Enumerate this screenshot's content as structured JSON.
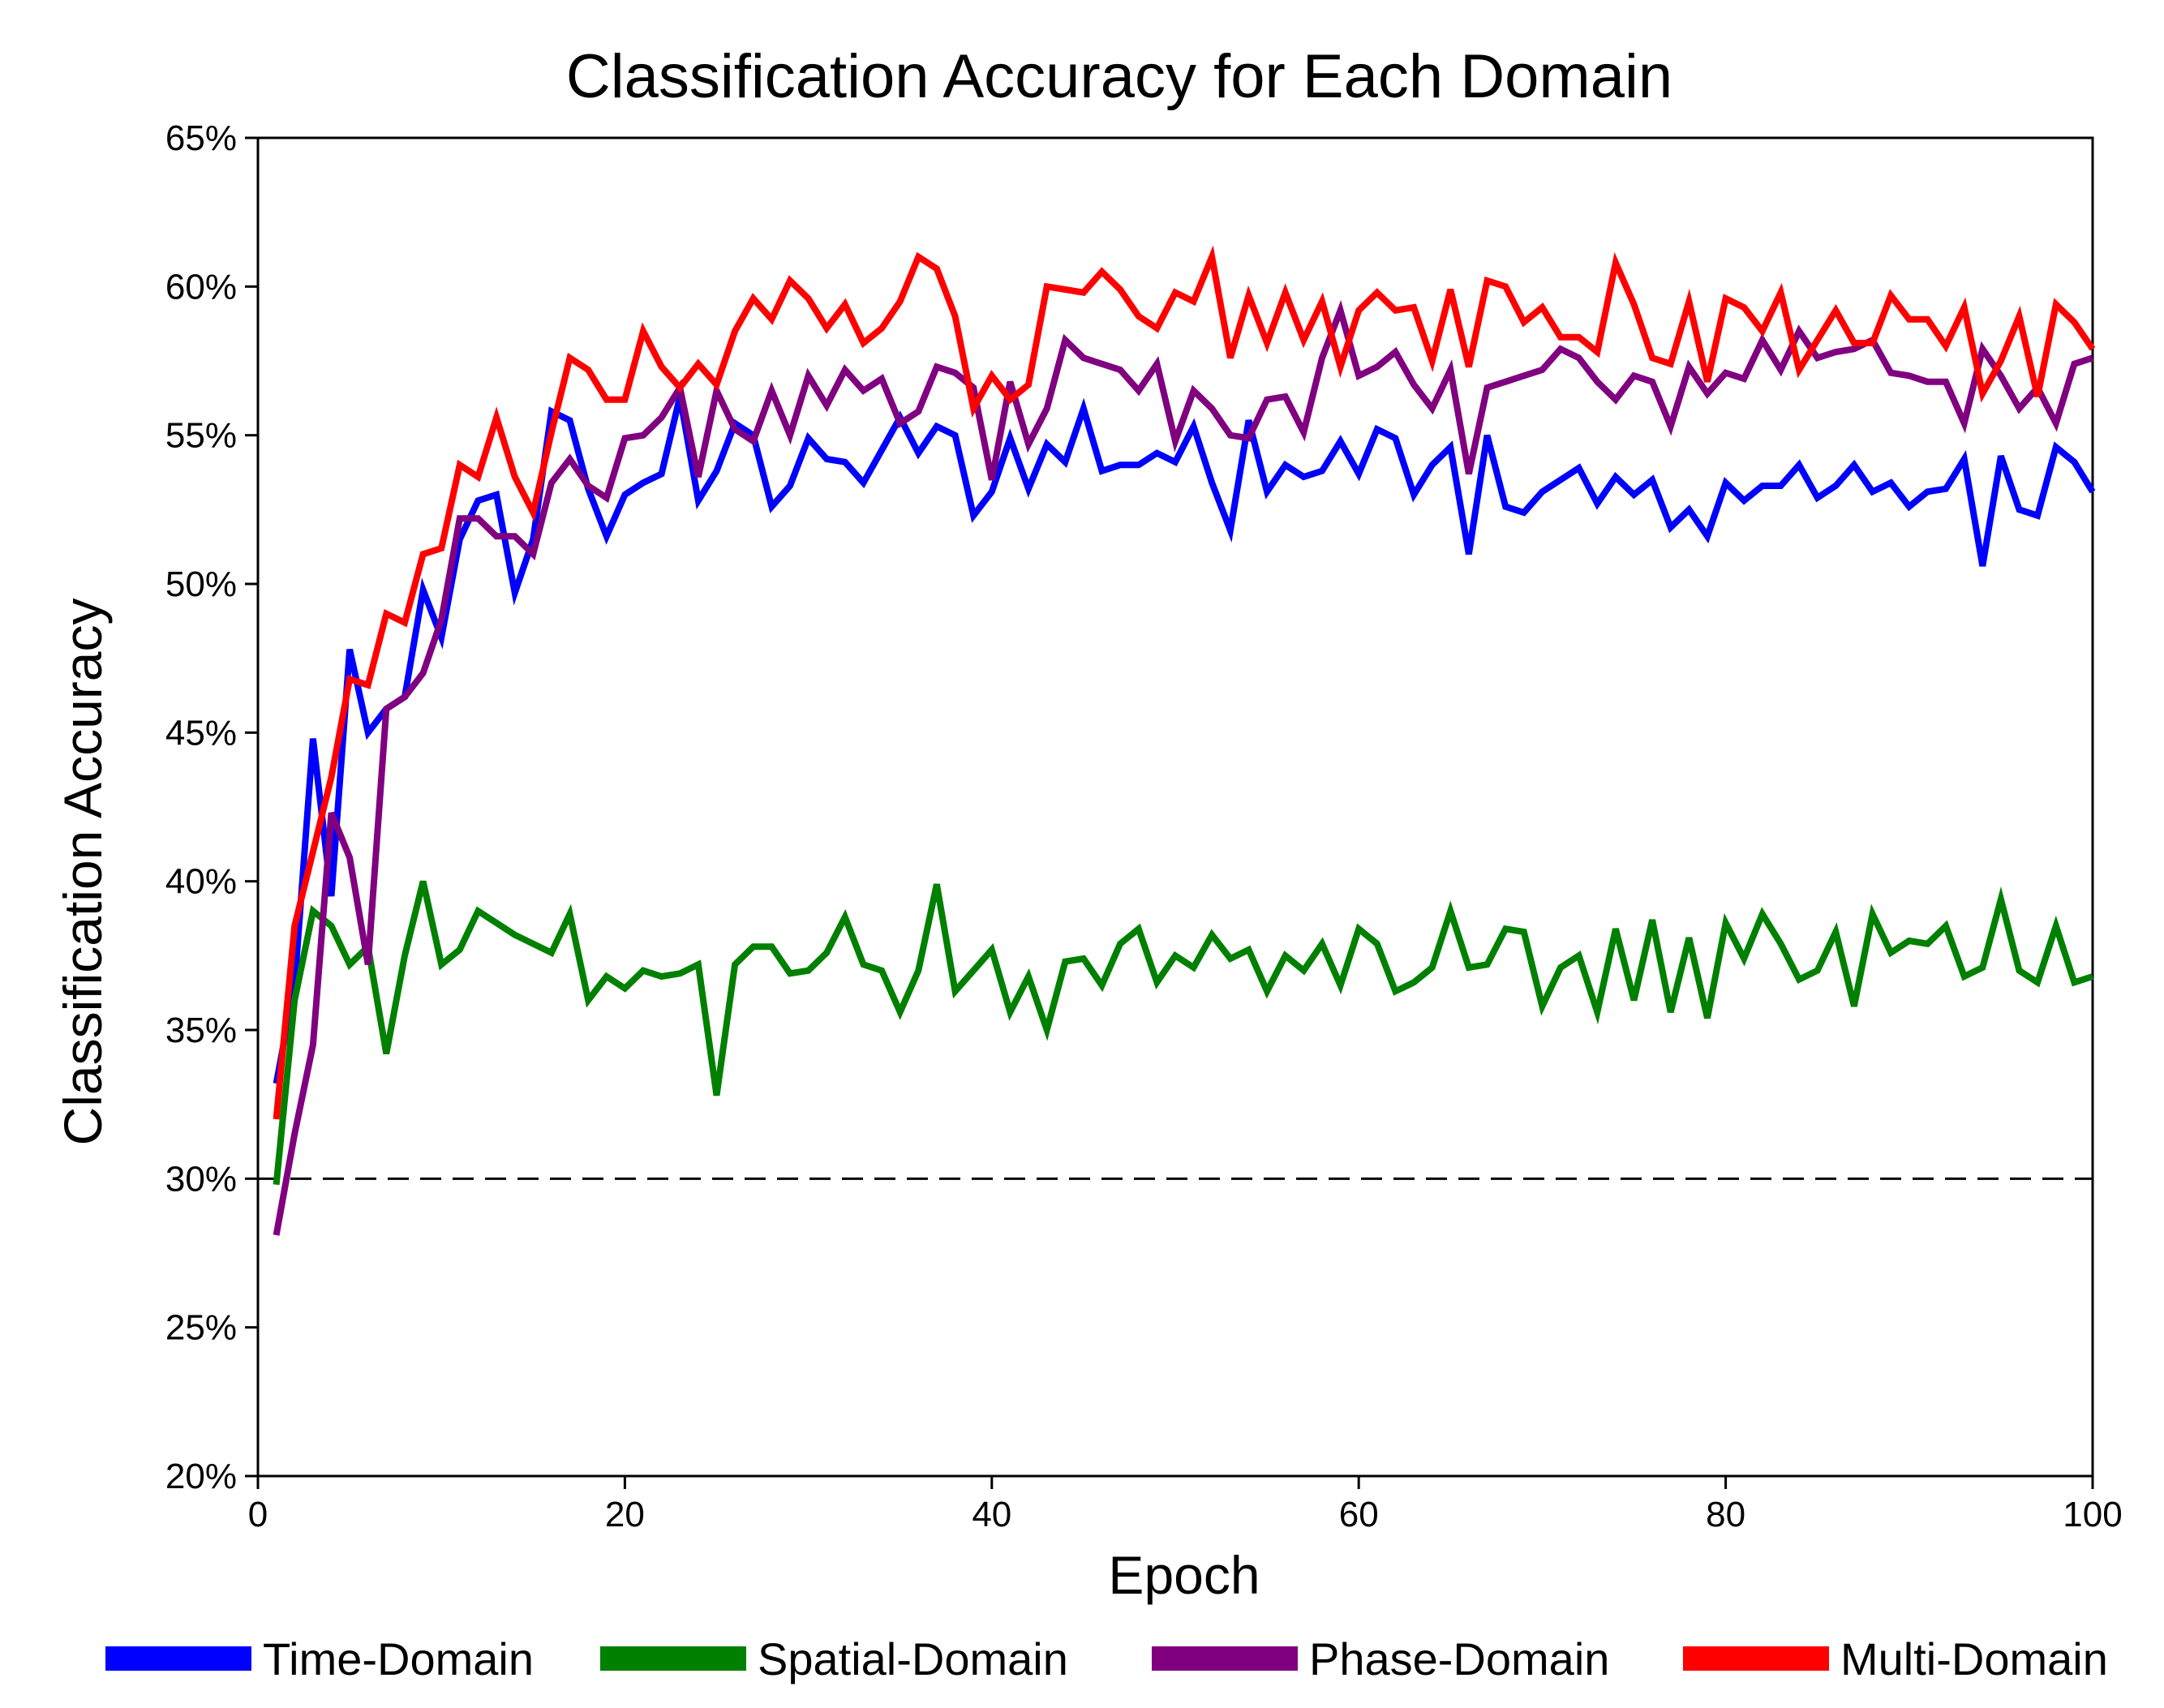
{
  "chart_data": {
    "type": "line",
    "title": "Classification Accuracy for Each Domain",
    "xlabel": "Epoch",
    "ylabel": "Classification Accuracy",
    "xlim": [
      0,
      100
    ],
    "ylim": [
      20,
      65
    ],
    "xticks": [
      0,
      20,
      40,
      60,
      80,
      100
    ],
    "xtick_labels": [
      "0",
      "20",
      "40",
      "60",
      "80",
      "100"
    ],
    "yticks": [
      20,
      25,
      30,
      35,
      40,
      45,
      50,
      55,
      60,
      65
    ],
    "ytick_labels": [
      "20%",
      "25%",
      "30%",
      "35%",
      "40%",
      "45%",
      "50%",
      "55%",
      "60%",
      "65%"
    ],
    "grid": false,
    "legend_position": "bottom",
    "reference_line": {
      "y": 30,
      "style": "dashed",
      "color": "#000000"
    },
    "x": [
      1,
      2,
      3,
      4,
      5,
      6,
      7,
      8,
      9,
      10,
      11,
      12,
      13,
      14,
      15,
      16,
      17,
      18,
      19,
      20,
      21,
      22,
      23,
      24,
      25,
      26,
      27,
      28,
      29,
      30,
      31,
      32,
      33,
      34,
      35,
      36,
      37,
      38,
      39,
      40,
      41,
      42,
      43,
      44,
      45,
      46,
      47,
      48,
      49,
      50,
      51,
      52,
      53,
      54,
      55,
      56,
      57,
      58,
      59,
      60,
      61,
      62,
      63,
      64,
      65,
      66,
      67,
      68,
      69,
      70,
      71,
      72,
      73,
      74,
      75,
      76,
      77,
      78,
      79,
      80,
      81,
      82,
      83,
      84,
      85,
      86,
      87,
      88,
      89,
      90,
      91,
      92,
      93,
      94,
      95,
      96,
      97,
      98,
      99,
      100
    ],
    "series": [
      {
        "name": "Time-Domain",
        "color": "#0000ff",
        "values": [
          33.2,
          36.5,
          44.8,
          39.5,
          47.8,
          45.0,
          45.8,
          46.2,
          49.8,
          48.2,
          51.5,
          52.8,
          53.0,
          49.7,
          51.5,
          55.8,
          55.5,
          53.2,
          51.6,
          53.0,
          53.4,
          53.7,
          56.3,
          52.8,
          53.8,
          55.4,
          55.0,
          52.6,
          53.3,
          54.9,
          54.2,
          54.1,
          53.4,
          54.5,
          55.6,
          54.4,
          55.3,
          55.0,
          52.3,
          53.1,
          54.9,
          53.2,
          54.7,
          54.1,
          55.9,
          53.8,
          54.0,
          54.0,
          54.4,
          54.1,
          55.3,
          53.4,
          51.8,
          55.5,
          53.1,
          54.0,
          53.6,
          53.8,
          54.8,
          53.7,
          55.2,
          54.9,
          53.0,
          54.0,
          54.6,
          51.0,
          55.0,
          52.6,
          52.4,
          53.1,
          53.5,
          53.9,
          52.7,
          53.6,
          53.0,
          53.5,
          51.9,
          52.5,
          51.6,
          53.4,
          52.8,
          53.3,
          53.3,
          54.0,
          52.9,
          53.3,
          54.0,
          53.1,
          53.4,
          52.6,
          53.1,
          53.2,
          54.2,
          50.6,
          54.3,
          52.5,
          52.3,
          54.6,
          54.1,
          53.1
        ]
      },
      {
        "name": "Spatial-Domain",
        "color": "#008000",
        "values": [
          29.8,
          36.0,
          39.0,
          38.5,
          37.2,
          37.8,
          34.2,
          37.5,
          40.0,
          37.2,
          37.7,
          39.0,
          38.6,
          38.2,
          37.9,
          37.6,
          38.9,
          36.0,
          36.8,
          36.4,
          37.0,
          36.8,
          36.9,
          37.2,
          32.8,
          37.2,
          37.8,
          37.8,
          36.9,
          37.0,
          37.6,
          38.8,
          37.2,
          37.0,
          35.6,
          37.0,
          39.9,
          36.3,
          37.0,
          37.7,
          35.6,
          36.8,
          35.0,
          37.3,
          37.4,
          36.5,
          37.9,
          38.4,
          36.6,
          37.5,
          37.1,
          38.2,
          37.4,
          37.7,
          36.3,
          37.5,
          37.0,
          37.9,
          36.5,
          38.4,
          37.9,
          36.3,
          36.6,
          37.1,
          39.0,
          37.1,
          37.2,
          38.4,
          38.3,
          35.8,
          37.1,
          37.5,
          35.6,
          38.4,
          36.0,
          38.7,
          35.6,
          38.1,
          35.4,
          38.6,
          37.4,
          38.9,
          37.9,
          36.7,
          37.0,
          38.3,
          35.8,
          38.9,
          37.6,
          38.0,
          37.9,
          38.5,
          36.8,
          37.1,
          39.4,
          37.0,
          36.6,
          38.5,
          36.6,
          36.8
        ]
      },
      {
        "name": "Phase-Domain",
        "color": "#800080",
        "values": [
          28.1,
          31.5,
          34.5,
          42.3,
          40.8,
          37.2,
          45.8,
          46.2,
          47.0,
          48.8,
          52.2,
          52.2,
          51.6,
          51.6,
          51.0,
          53.4,
          54.2,
          53.3,
          52.9,
          54.9,
          55.0,
          55.6,
          56.6,
          53.6,
          56.5,
          55.2,
          54.8,
          56.5,
          55.0,
          57.0,
          56.0,
          57.2,
          56.5,
          56.9,
          55.4,
          55.8,
          57.3,
          57.1,
          56.6,
          53.5,
          56.8,
          54.7,
          55.9,
          58.2,
          57.6,
          57.4,
          57.2,
          56.5,
          57.4,
          54.8,
          56.5,
          55.9,
          55.0,
          54.9,
          56.2,
          56.3,
          55.1,
          57.6,
          59.2,
          57.0,
          57.3,
          57.8,
          56.7,
          55.9,
          57.2,
          53.7,
          56.6,
          56.8,
          57.0,
          57.2,
          57.9,
          57.6,
          56.8,
          56.2,
          57.0,
          56.8,
          55.3,
          57.3,
          56.4,
          57.1,
          56.9,
          58.2,
          57.2,
          58.5,
          57.6,
          57.8,
          57.9,
          58.2,
          57.1,
          57.0,
          56.8,
          56.8,
          55.4,
          57.9,
          57.0,
          55.9,
          56.6,
          55.4,
          57.4,
          57.6
        ]
      },
      {
        "name": "Multi-Domain",
        "color": "#ff0000",
        "values": [
          32.0,
          38.5,
          41.0,
          43.5,
          46.8,
          46.6,
          49.0,
          48.7,
          51.0,
          51.2,
          54.0,
          53.6,
          55.6,
          53.6,
          52.4,
          55.1,
          57.6,
          57.2,
          56.2,
          56.2,
          58.5,
          57.3,
          56.6,
          57.4,
          56.7,
          58.5,
          59.6,
          58.9,
          60.2,
          59.6,
          58.6,
          59.4,
          58.1,
          58.6,
          59.5,
          61.0,
          60.6,
          59.0,
          55.9,
          57.0,
          56.2,
          56.7,
          60.0,
          59.9,
          59.8,
          60.5,
          59.9,
          59.0,
          58.6,
          59.8,
          59.5,
          61.0,
          57.6,
          59.7,
          58.1,
          59.8,
          58.2,
          59.5,
          57.3,
          59.2,
          59.8,
          59.2,
          59.3,
          57.5,
          59.9,
          57.3,
          60.2,
          60.0,
          58.8,
          59.3,
          58.3,
          58.3,
          57.8,
          60.8,
          59.4,
          57.6,
          57.4,
          59.5,
          56.8,
          59.6,
          59.3,
          58.5,
          59.8,
          57.2,
          58.2,
          59.2,
          58.1,
          58.1,
          59.7,
          58.9,
          58.9,
          58.0,
          59.3,
          56.4,
          57.5,
          59.0,
          56.3,
          59.4,
          58.8,
          57.9
        ]
      }
    ]
  }
}
